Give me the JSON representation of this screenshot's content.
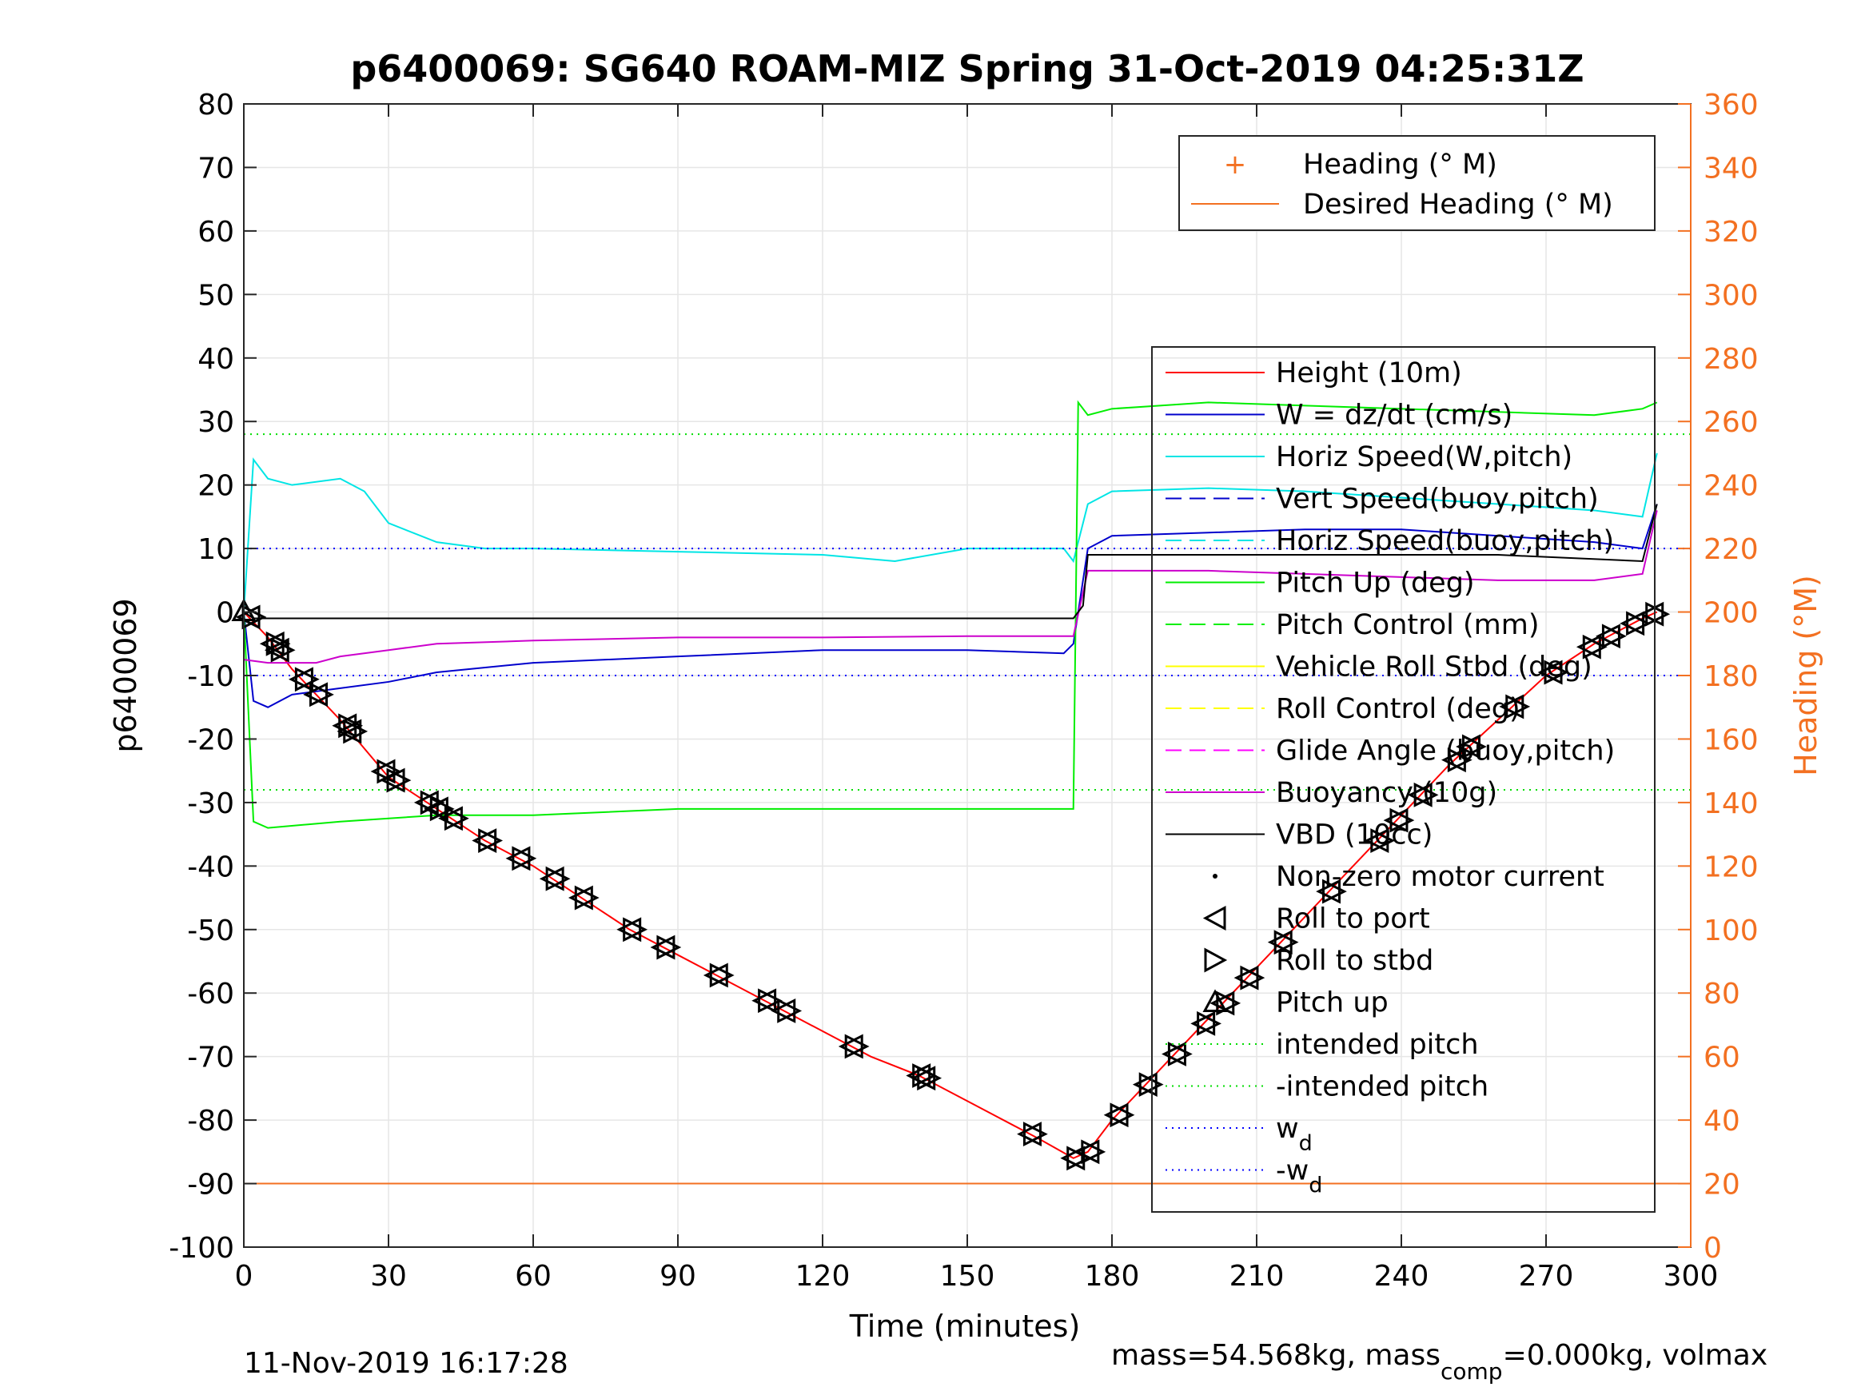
{
  "chart_data": {
    "type": "line",
    "title": "p6400069: SG640 ROAM-MIZ Spring 31-Oct-2019 04:25:31Z",
    "xlabel": "Time (minutes)",
    "ylabel_left": "p6400069",
    "ylabel_right": "Heading (°M)",
    "xlim": [
      0,
      300
    ],
    "ylim_left": [
      -100,
      80
    ],
    "ylim_right": [
      0,
      360
    ],
    "x_ticks": [
      "0",
      "30",
      "60",
      "90",
      "120",
      "150",
      "180",
      "210",
      "240",
      "270",
      "300"
    ],
    "y_ticks_left": [
      "80",
      "70",
      "60",
      "50",
      "40",
      "30",
      "20",
      "10",
      "0",
      "-10",
      "-20",
      "-30",
      "-40",
      "-50",
      "-60",
      "-70",
      "-80",
      "-90",
      "-100"
    ],
    "y_ticks_right": [
      "360",
      "340",
      "320",
      "300",
      "280",
      "260",
      "240",
      "220",
      "200",
      "180",
      "160",
      "140",
      "120",
      "100",
      "80",
      "60",
      "40",
      "20",
      "0"
    ],
    "grid": true,
    "legend_top": [
      "Heading (° M)",
      "Desired Heading (° M)"
    ],
    "legend_main": [
      {
        "label": "Height (10m)",
        "color": "#ff0000",
        "style": "line"
      },
      {
        "label": "W = dz/dt (cm/s)",
        "color": "#0000cc",
        "style": "line"
      },
      {
        "label": "Horiz Speed(W,pitch)",
        "color": "#00e5e5",
        "style": "line"
      },
      {
        "label": "Vert Speed(buoy,pitch)",
        "color": "#0000cc",
        "style": "dash"
      },
      {
        "label": "Horiz Speed(buoy,pitch)",
        "color": "#00e5e5",
        "style": "dash"
      },
      {
        "label": "Pitch Up (deg)",
        "color": "#00ee00",
        "style": "line"
      },
      {
        "label": "Pitch Control (mm)",
        "color": "#00ee00",
        "style": "dash"
      },
      {
        "label": "Vehicle Roll Stbd (deg)",
        "color": "#ffff00",
        "style": "line"
      },
      {
        "label": "Roll Control (deg)",
        "color": "#ffff00",
        "style": "dash"
      },
      {
        "label": "Glide Angle (buoy,pitch)",
        "color": "#ff00ff",
        "style": "dash"
      },
      {
        "label": "Buoyancy (10g)",
        "color": "#cc00cc",
        "style": "line"
      },
      {
        "label": "VBD (10cc)",
        "color": "#000000",
        "style": "line"
      },
      {
        "label": "Non-zero motor current",
        "color": "#000000",
        "style": "dot"
      },
      {
        "label": "Roll to port",
        "color": "#000000",
        "style": "tri-left"
      },
      {
        "label": "Roll to stbd",
        "color": "#000000",
        "style": "tri-right"
      },
      {
        "label": "Pitch up",
        "color": "#000000",
        "style": "tri-up"
      },
      {
        "label": "intended pitch",
        "color": "#00dd00",
        "style": "dot-line"
      },
      {
        "label": "-intended pitch",
        "color": "#00dd00",
        "style": "dot-line"
      },
      {
        "label": "w_d",
        "color": "#0000ff",
        "style": "dot-line"
      },
      {
        "label": "-w_d",
        "color": "#0000ff",
        "style": "dot-line"
      }
    ],
    "series": [
      {
        "name": "Height (10m)",
        "x": [
          0,
          5,
          10,
          20,
          30,
          40,
          50,
          60,
          70,
          80,
          90,
          100,
          110,
          120,
          130,
          140,
          150,
          160,
          165,
          172,
          175,
          180,
          190,
          200,
          210,
          220,
          230,
          240,
          250,
          260,
          270,
          280,
          290,
          293
        ],
        "y": [
          0,
          -4,
          -9,
          -17,
          -26,
          -31,
          -36,
          -40,
          -45,
          -50,
          -54,
          -58,
          -62,
          -66,
          -70,
          -73,
          -77,
          -81,
          -83,
          -86,
          -85,
          -80,
          -72,
          -64,
          -56,
          -48,
          -40,
          -32,
          -24,
          -17,
          -10,
          -5,
          -1,
          0
        ]
      },
      {
        "name": "W = dz/dt (cm/s)",
        "x": [
          0,
          2,
          5,
          10,
          20,
          30,
          40,
          60,
          90,
          120,
          150,
          170,
          172,
          175,
          180,
          200,
          220,
          240,
          260,
          280,
          290,
          293
        ],
        "y": [
          0,
          -14,
          -15,
          -13,
          -12,
          -11,
          -9.5,
          -8,
          -7,
          -6,
          -6,
          -6.5,
          -5,
          10,
          12,
          12.5,
          13,
          13,
          12,
          11,
          10,
          17
        ]
      },
      {
        "name": "Horiz Speed(W,pitch)",
        "x": [
          0,
          2,
          5,
          10,
          20,
          25,
          30,
          40,
          50,
          60,
          90,
          120,
          135,
          150,
          170,
          172,
          175,
          180,
          200,
          220,
          240,
          260,
          280,
          290,
          293
        ],
        "y": [
          0,
          24,
          21,
          20,
          21,
          19,
          14,
          11,
          10,
          10,
          9.5,
          9,
          8,
          10,
          10,
          8,
          17,
          19,
          19.5,
          19,
          18,
          17,
          16,
          15,
          25
        ]
      },
      {
        "name": "Pitch Up (deg)",
        "x": [
          0,
          2,
          5,
          20,
          40,
          60,
          90,
          120,
          150,
          172,
          173,
          175,
          180,
          200,
          220,
          240,
          260,
          280,
          290,
          293
        ],
        "y": [
          0,
          -33,
          -34,
          -33,
          -32,
          -32,
          -31,
          -31,
          -31,
          -31,
          33,
          31,
          32,
          33,
          32.5,
          32,
          31.5,
          31,
          32,
          33
        ]
      },
      {
        "name": "Buoyancy (10g)",
        "x": [
          0,
          5,
          15,
          20,
          30,
          40,
          60,
          90,
          120,
          150,
          172,
          175,
          180,
          200,
          220,
          240,
          260,
          280,
          290,
          293
        ],
        "y": [
          -7.5,
          -8,
          -8,
          -7,
          -6,
          -5,
          -4.5,
          -4,
          -4,
          -3.8,
          -3.8,
          6.5,
          6.5,
          6.5,
          6,
          5.5,
          5,
          5,
          6,
          16
        ]
      },
      {
        "name": "VBD (10cc)",
        "x": [
          0,
          2,
          5,
          60,
          120,
          172,
          174,
          175,
          180,
          220,
          260,
          290,
          293
        ],
        "y": [
          0,
          -1,
          -1,
          -1,
          -1,
          -1,
          1,
          9,
          9,
          9,
          9,
          8,
          17
        ]
      },
      {
        "name": "intended pitch",
        "x": [
          0,
          300
        ],
        "y": [
          28,
          28
        ]
      },
      {
        "name": "-intended pitch",
        "x": [
          0,
          300
        ],
        "y": [
          -28,
          -28
        ]
      },
      {
        "name": "w_d",
        "x": [
          0,
          300
        ],
        "y": [
          10,
          10
        ]
      },
      {
        "name": "-w_d",
        "x": [
          0,
          300
        ],
        "y": [
          -10,
          -10
        ]
      },
      {
        "name": "Desired Heading (° M)",
        "x": [
          0,
          300
        ],
        "y_right": [
          20,
          20
        ]
      }
    ],
    "markers": {
      "x": [
        1,
        6,
        7,
        12,
        15,
        21,
        22,
        29,
        31,
        38,
        40,
        43,
        50,
        57,
        64,
        70,
        80,
        87,
        98,
        108,
        112,
        126,
        140,
        141,
        163,
        172,
        175,
        181,
        187,
        193,
        199,
        203,
        208,
        215,
        225,
        235,
        239,
        244,
        251,
        254,
        263,
        271,
        279,
        283,
        288,
        292
      ]
    }
  },
  "footer": {
    "timestamp": "11-Nov-2019 16:17:28",
    "mass_text": "mass=54.568kg, mass",
    "mass_sub": "comp",
    "mass_rest": "=0.000kg, volmax"
  }
}
